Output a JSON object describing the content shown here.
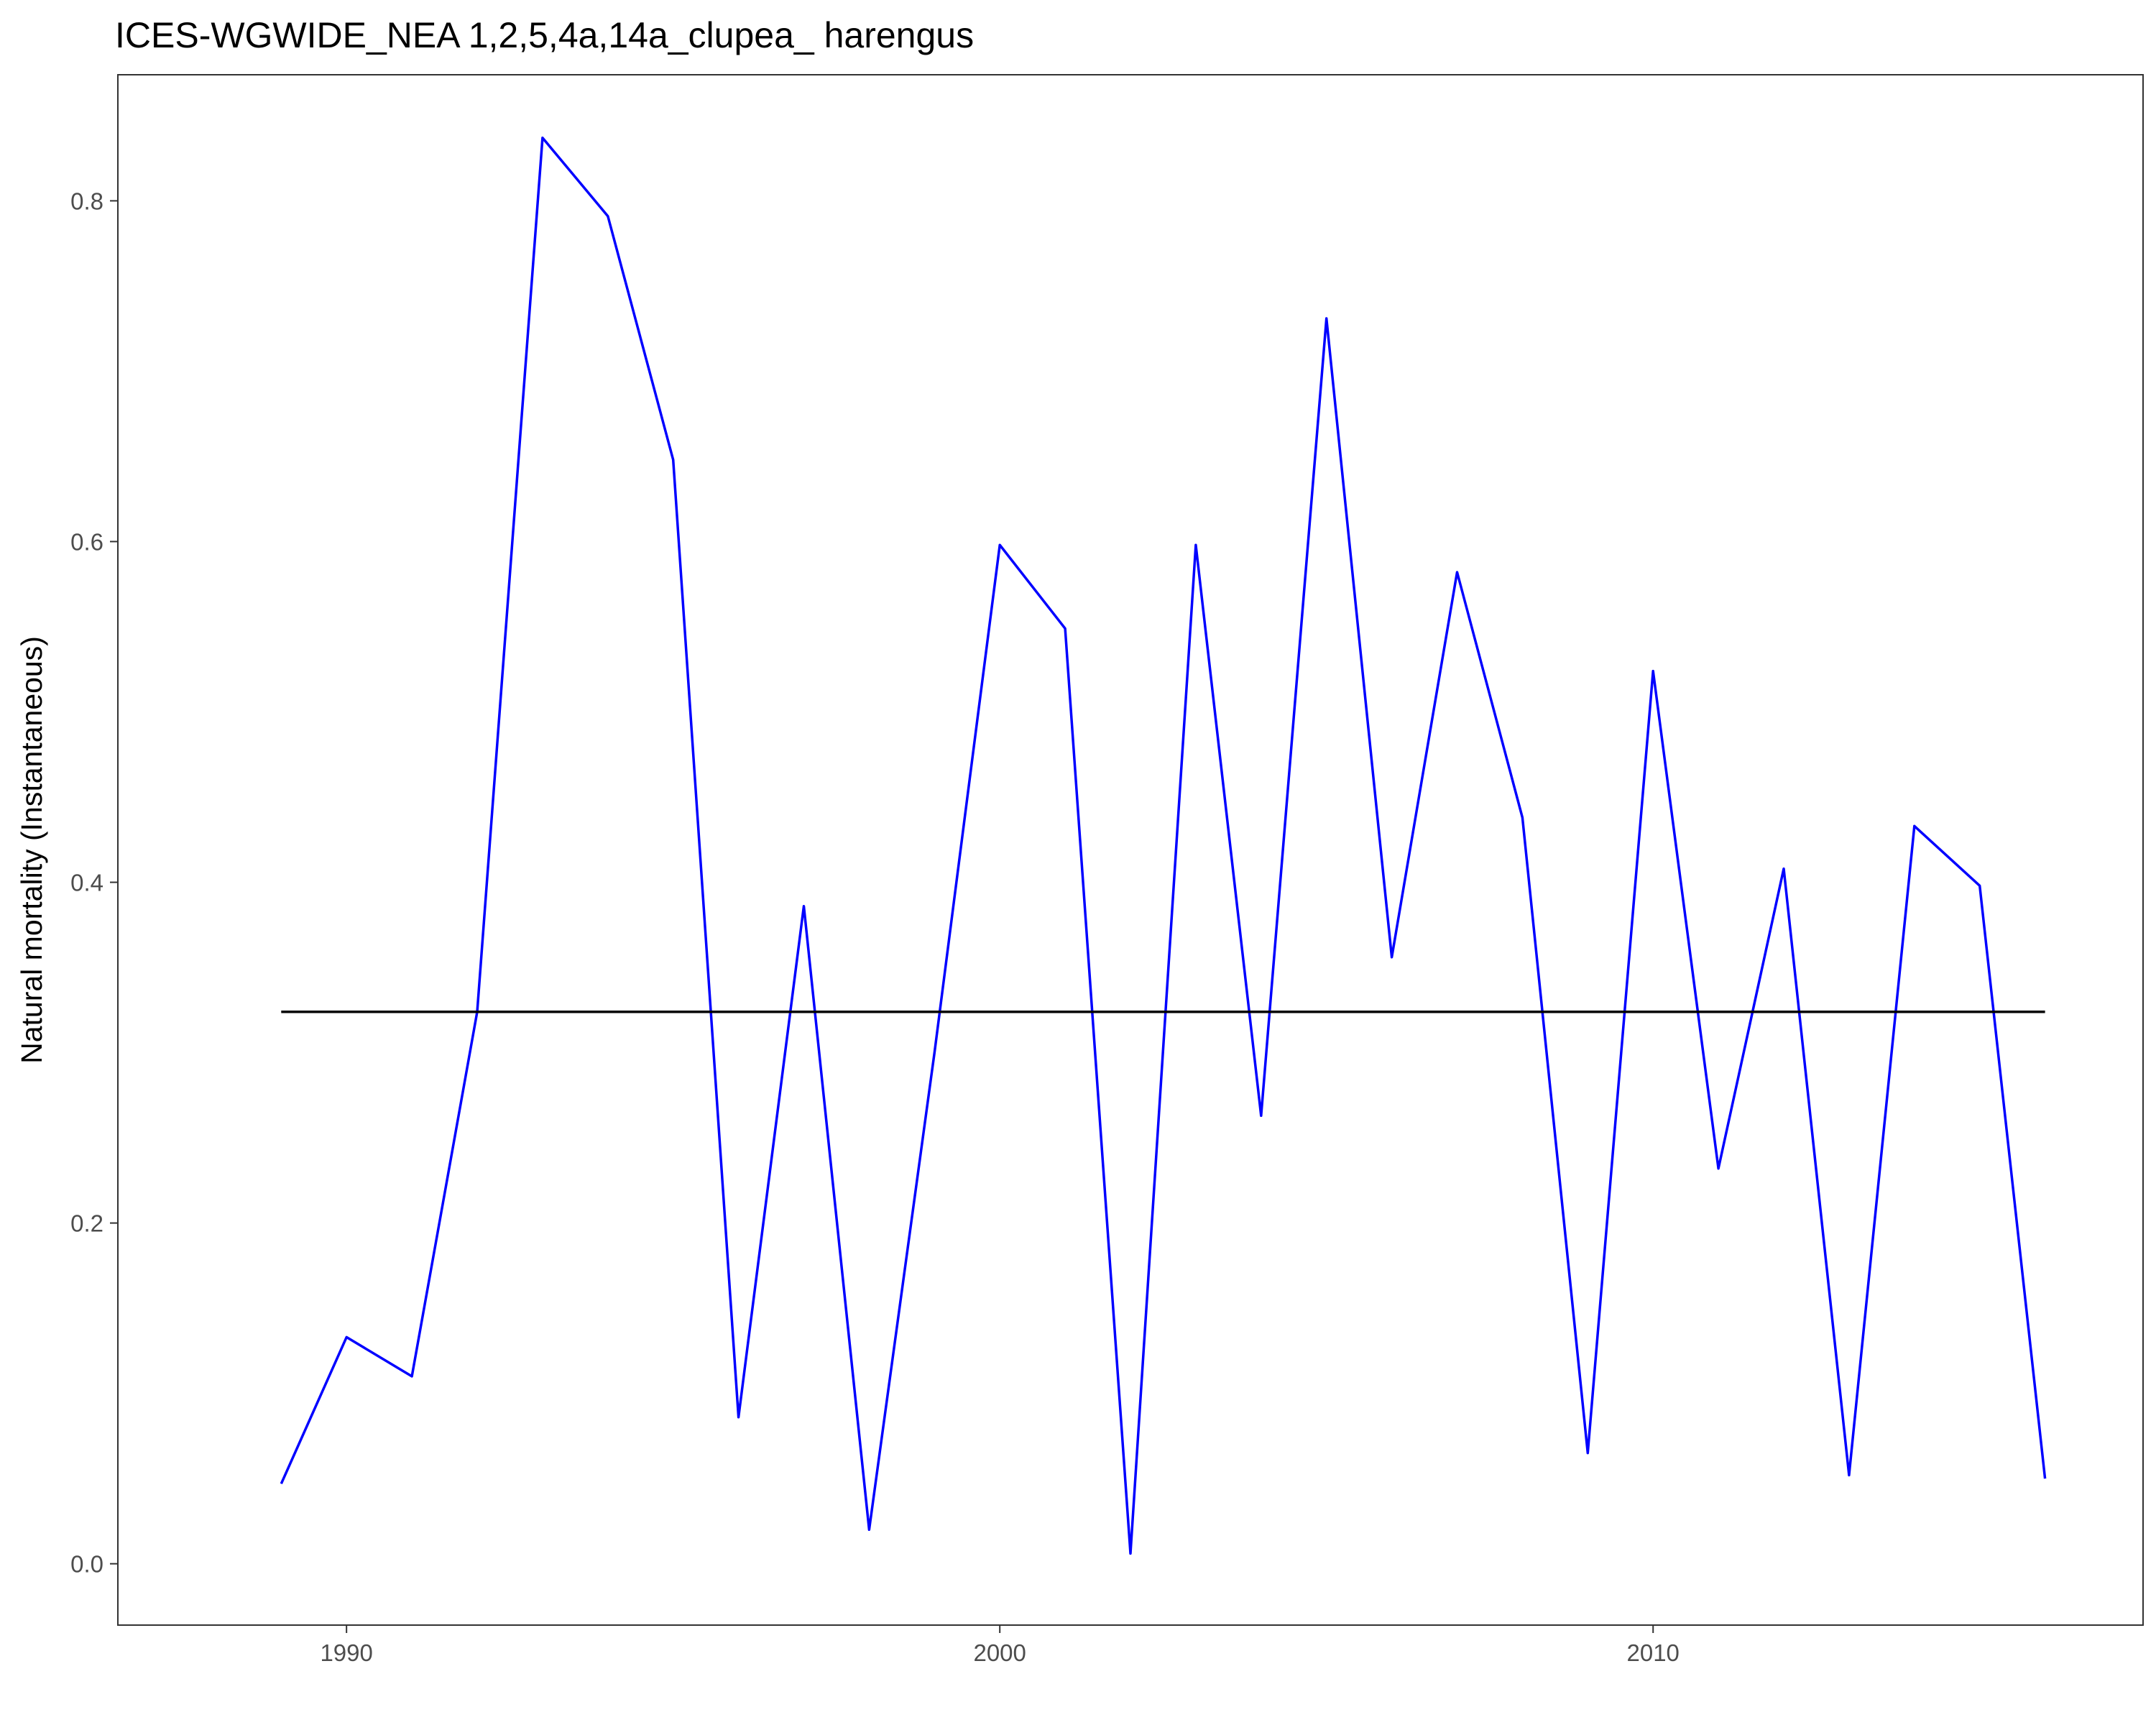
{
  "chart_data": {
    "type": "line",
    "title": "ICES-WGWIDE_NEA 1,2,5,4a,14a_clupea_ harengus",
    "xlabel": "",
    "ylabel": "Natural mortality (Instantaneous)",
    "xlim": [
      1986.5,
      2017.5
    ],
    "ylim": [
      -0.036,
      0.874
    ],
    "x_ticks": [
      1990,
      2000,
      2010
    ],
    "x_tick_labels": [
      "1990",
      "2000",
      "2010"
    ],
    "y_ticks": [
      0.0,
      0.2,
      0.4,
      0.6,
      0.8
    ],
    "y_tick_labels": [
      "0.0",
      "0.2",
      "0.4",
      "0.6",
      "0.8"
    ],
    "grid": false,
    "series": [
      {
        "color": "#0000ff",
        "x": [
          1989,
          1990,
          1991,
          1992,
          1993,
          1994,
          1995,
          1996,
          1997,
          1998,
          1999,
          2000,
          2001,
          2002,
          2003,
          2004,
          2005,
          2006,
          2007,
          2008,
          2009,
          2010,
          2011,
          2012,
          2013,
          2014,
          2015,
          2016
        ],
        "values": [
          0.047,
          0.133,
          0.11,
          0.324,
          0.837,
          0.791,
          0.648,
          0.086,
          0.386,
          0.02,
          0.3,
          0.598,
          0.549,
          0.006,
          0.598,
          0.263,
          0.731,
          0.356,
          0.582,
          0.438,
          0.065,
          0.524,
          0.232,
          0.408,
          0.052,
          0.433,
          0.398,
          0.05
        ]
      },
      {
        "color": "#000000",
        "x": [
          1989,
          2016
        ],
        "values": [
          0.324,
          0.324
        ]
      }
    ]
  }
}
